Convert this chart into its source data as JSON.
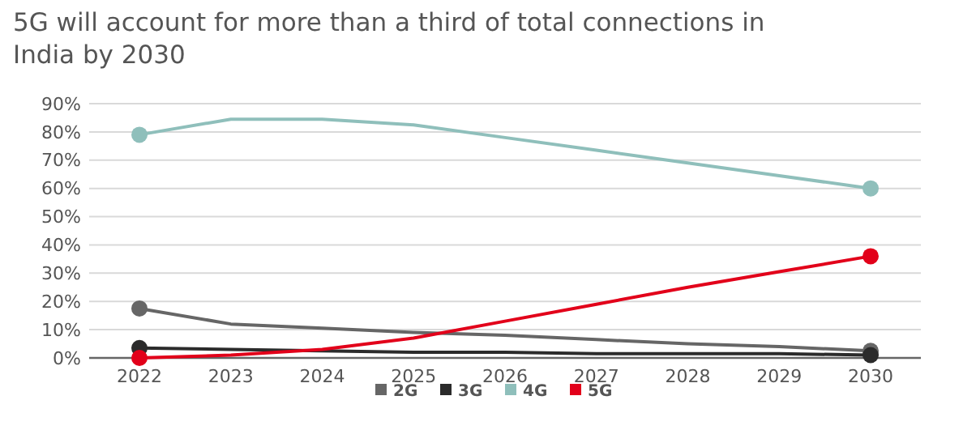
{
  "chart_data": {
    "type": "line",
    "title": "5G will account for more than a third of total connections in India by 2030",
    "categories": [
      "2022",
      "2023",
      "2024",
      "2025",
      "2026",
      "2027",
      "2028",
      "2029",
      "2030"
    ],
    "series": [
      {
        "name": "2G",
        "color": "#666666",
        "values": [
          17.5,
          12,
          10.5,
          9,
          8,
          6.5,
          5,
          4,
          2.5
        ]
      },
      {
        "name": "3G",
        "color": "#2b2b2b",
        "values": [
          3.5,
          3,
          2.5,
          2,
          2,
          1.5,
          1.5,
          1.5,
          1
        ]
      },
      {
        "name": "4G",
        "color": "#8fbfbb",
        "values": [
          79,
          84.5,
          84.5,
          82.5,
          78,
          73.5,
          69,
          64.5,
          60
        ]
      },
      {
        "name": "5G",
        "color": "#e2001a",
        "values": [
          0,
          1,
          3,
          7,
          13,
          19,
          25,
          30.5,
          36
        ]
      },
      {
        "type": "scatter",
        "color": "#666666",
        "values": [
          17.5,
          null,
          null,
          null,
          null,
          null,
          null,
          null,
          2.5
        ]
      },
      {
        "type": "scatter",
        "color": "#2b2b2b",
        "values": [
          3.5,
          null,
          null,
          null,
          null,
          null,
          null,
          null,
          1
        ]
      },
      {
        "type": "scatter",
        "color": "#8fbfbb",
        "values": [
          79,
          null,
          null,
          null,
          null,
          null,
          null,
          null,
          60
        ]
      },
      {
        "type": "scatter",
        "color": "#e2001a",
        "values": [
          0,
          null,
          null,
          null,
          null,
          null,
          null,
          null,
          36
        ]
      }
    ],
    "ylim": [
      0,
      90
    ],
    "yticks": [
      {
        "value": 0,
        "label": "0%"
      },
      {
        "value": 10,
        "label": "10%"
      },
      {
        "value": 20,
        "label": "20%"
      },
      {
        "value": 30,
        "label": "30%"
      },
      {
        "value": 40,
        "label": "40%"
      },
      {
        "value": 50,
        "label": "50%"
      },
      {
        "value": 60,
        "label": "60%"
      },
      {
        "value": 70,
        "label": "70%"
      },
      {
        "value": 80,
        "label": "80%"
      },
      {
        "value": 90,
        "label": "90%"
      }
    ],
    "grid": "y",
    "legend": "bottom",
    "line_style": "solid"
  }
}
